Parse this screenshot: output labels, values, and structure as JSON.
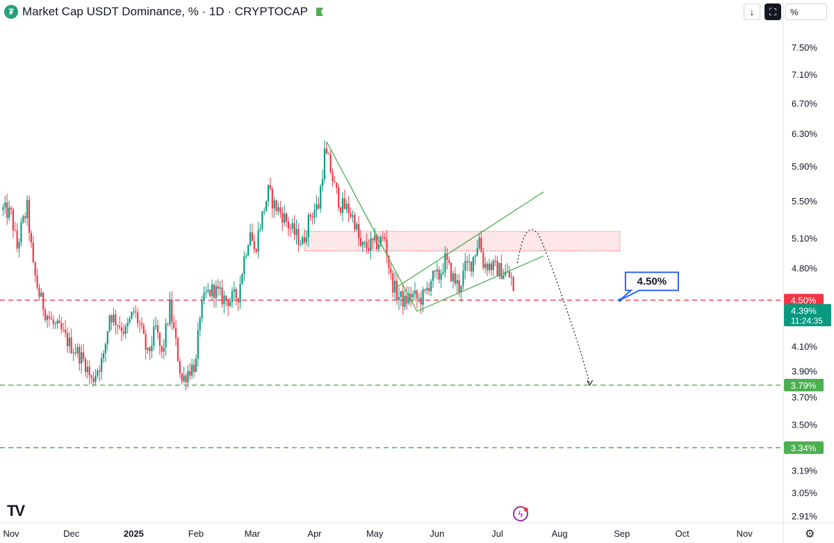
{
  "header": {
    "title": "Market Cap USDT Dominance, % · 1D · CRYPTOCAP",
    "logo_icon": "tether-icon",
    "toolbar": {
      "download_label": "↓",
      "fullscreen_icon": "expand-icon",
      "scale_label": "%"
    }
  },
  "footer": {
    "tv_logo_text": "TV",
    "settings_icon": "gear-icon",
    "flash_icon": "lightning-icon"
  },
  "chart_data": {
    "type": "candlestick",
    "symbol": "USDT Dominance",
    "interval": "1D",
    "title": "Market Cap USDT Dominance, % · 1D · CRYPTOCAP",
    "y_scale": "log",
    "y_ticks": [
      "7.50%",
      "7.10%",
      "6.70%",
      "6.30%",
      "5.90%",
      "5.50%",
      "5.10%",
      "4.80%",
      "4.10%",
      "3.90%",
      "3.70%",
      "3.50%",
      "3.19%",
      "3.05%",
      "2.91%"
    ],
    "y_tick_values": [
      7.5,
      7.1,
      6.7,
      6.3,
      5.9,
      5.5,
      5.1,
      4.8,
      4.1,
      3.9,
      3.7,
      3.5,
      3.19,
      3.05,
      2.91
    ],
    "x_ticks": [
      "Nov",
      "Dec",
      "2025",
      "Feb",
      "Mar",
      "Apr",
      "May",
      "Jun",
      "Jul",
      "Aug",
      "Sep",
      "Oct",
      "Nov"
    ],
    "x_tick_dates": [
      "2024-11-01",
      "2024-12-01",
      "2025-01-01",
      "2025-02-01",
      "2025-03-01",
      "2025-04-01",
      "2025-05-01",
      "2025-06-01",
      "2025-07-01",
      "2025-08-01",
      "2025-09-01",
      "2025-10-01",
      "2025-11-01"
    ],
    "price_path": [
      [
        "2024-10-28",
        5.4
      ],
      [
        "2024-11-01",
        5.35
      ],
      [
        "2024-11-04",
        5.0
      ],
      [
        "2024-11-06",
        5.2
      ],
      [
        "2024-11-09",
        5.42
      ],
      [
        "2024-11-12",
        4.8
      ],
      [
        "2024-11-15",
        4.55
      ],
      [
        "2024-11-18",
        4.4
      ],
      [
        "2024-11-22",
        4.28
      ],
      [
        "2024-11-26",
        4.22
      ],
      [
        "2024-11-30",
        4.12
      ],
      [
        "2024-12-04",
        4.05
      ],
      [
        "2024-12-08",
        3.96
      ],
      [
        "2024-12-11",
        3.82
      ],
      [
        "2024-12-14",
        3.92
      ],
      [
        "2024-12-17",
        4.0
      ],
      [
        "2024-12-20",
        4.38
      ],
      [
        "2024-12-24",
        4.3
      ],
      [
        "2024-12-28",
        4.22
      ],
      [
        "2025-01-01",
        4.4
      ],
      [
        "2025-01-04",
        4.28
      ],
      [
        "2025-01-08",
        4.02
      ],
      [
        "2025-01-12",
        4.25
      ],
      [
        "2025-01-15",
        4.02
      ],
      [
        "2025-01-19",
        4.44
      ],
      [
        "2025-01-22",
        4.12
      ],
      [
        "2025-01-25",
        3.82
      ],
      [
        "2025-01-28",
        3.9
      ],
      [
        "2025-02-01",
        3.96
      ],
      [
        "2025-02-03",
        4.38
      ],
      [
        "2025-02-06",
        4.55
      ],
      [
        "2025-02-10",
        4.6
      ],
      [
        "2025-02-14",
        4.52
      ],
      [
        "2025-02-18",
        4.5
      ],
      [
        "2025-02-22",
        4.55
      ],
      [
        "2025-02-25",
        4.9
      ],
      [
        "2025-02-28",
        5.2
      ],
      [
        "2025-03-02",
        4.95
      ],
      [
        "2025-03-05",
        5.25
      ],
      [
        "2025-03-09",
        5.6
      ],
      [
        "2025-03-12",
        5.45
      ],
      [
        "2025-03-16",
        5.35
      ],
      [
        "2025-03-20",
        5.2
      ],
      [
        "2025-03-23",
        5.12
      ],
      [
        "2025-03-26",
        5.05
      ],
      [
        "2025-03-30",
        5.35
      ],
      [
        "2025-04-03",
        5.45
      ],
      [
        "2025-04-06",
        6.05
      ],
      [
        "2025-04-08",
        5.95
      ],
      [
        "2025-04-11",
        5.65
      ],
      [
        "2025-04-14",
        5.45
      ],
      [
        "2025-04-18",
        5.4
      ],
      [
        "2025-04-21",
        5.28
      ],
      [
        "2025-04-24",
        5.0
      ],
      [
        "2025-04-28",
        5.02
      ],
      [
        "2025-05-02",
        5.05
      ],
      [
        "2025-05-06",
        5.1
      ],
      [
        "2025-05-09",
        4.7
      ],
      [
        "2025-05-12",
        4.55
      ],
      [
        "2025-05-16",
        4.48
      ],
      [
        "2025-05-19",
        4.55
      ],
      [
        "2025-05-23",
        4.5
      ],
      [
        "2025-05-26",
        4.55
      ],
      [
        "2025-05-29",
        4.7
      ],
      [
        "2025-06-02",
        4.72
      ],
      [
        "2025-06-05",
        4.88
      ],
      [
        "2025-06-09",
        4.7
      ],
      [
        "2025-06-12",
        4.62
      ],
      [
        "2025-06-15",
        4.8
      ],
      [
        "2025-06-18",
        4.85
      ],
      [
        "2025-06-22",
        5.1
      ],
      [
        "2025-06-24",
        4.85
      ],
      [
        "2025-06-28",
        4.82
      ],
      [
        "2025-07-02",
        4.78
      ],
      [
        "2025-07-05",
        4.75
      ],
      [
        "2025-07-08",
        4.7
      ],
      [
        "2025-07-10",
        4.4
      ]
    ],
    "last_value": "4.39%",
    "countdown": "11:24:35",
    "horizontal_levels": [
      {
        "value": 4.5,
        "label": "4.50%",
        "style": "dashed",
        "color": "#f23645"
      },
      {
        "value": 3.79,
        "label": "3.79%",
        "style": "dashed",
        "color": "#4caf50"
      },
      {
        "value": 3.34,
        "label": "3.34%",
        "style": "dashed",
        "color": "#4caf50"
      }
    ],
    "resistance_zone": {
      "from": "2025-03-27",
      "to": "2025-08-31",
      "low": 4.97,
      "high": 5.17,
      "color": "#f23645"
    },
    "trendlines": [
      {
        "from": [
          "2025-04-07",
          6.2
        ],
        "to": [
          "2025-05-22",
          4.4
        ],
        "color": "#4caf50"
      },
      {
        "from": [
          "2025-05-12",
          4.62
        ],
        "to": [
          "2025-07-24",
          5.6
        ],
        "color": "#4caf50"
      },
      {
        "from": [
          "2025-05-22",
          4.4
        ],
        "to": [
          "2025-07-24",
          4.92
        ],
        "color": "#4caf50"
      }
    ],
    "projection": {
      "points": [
        [
          "2025-07-11",
          4.85
        ],
        [
          "2025-07-21",
          5.15
        ],
        [
          "2025-08-16",
          3.79
        ]
      ],
      "style": "dotted",
      "color": "#131722"
    },
    "callout": {
      "text": "4.50%",
      "anchor_date": "2025-08-31",
      "anchor_value": 4.5,
      "color": "#2962ff"
    },
    "colors": {
      "up": "#089981",
      "down": "#f23645"
    }
  }
}
